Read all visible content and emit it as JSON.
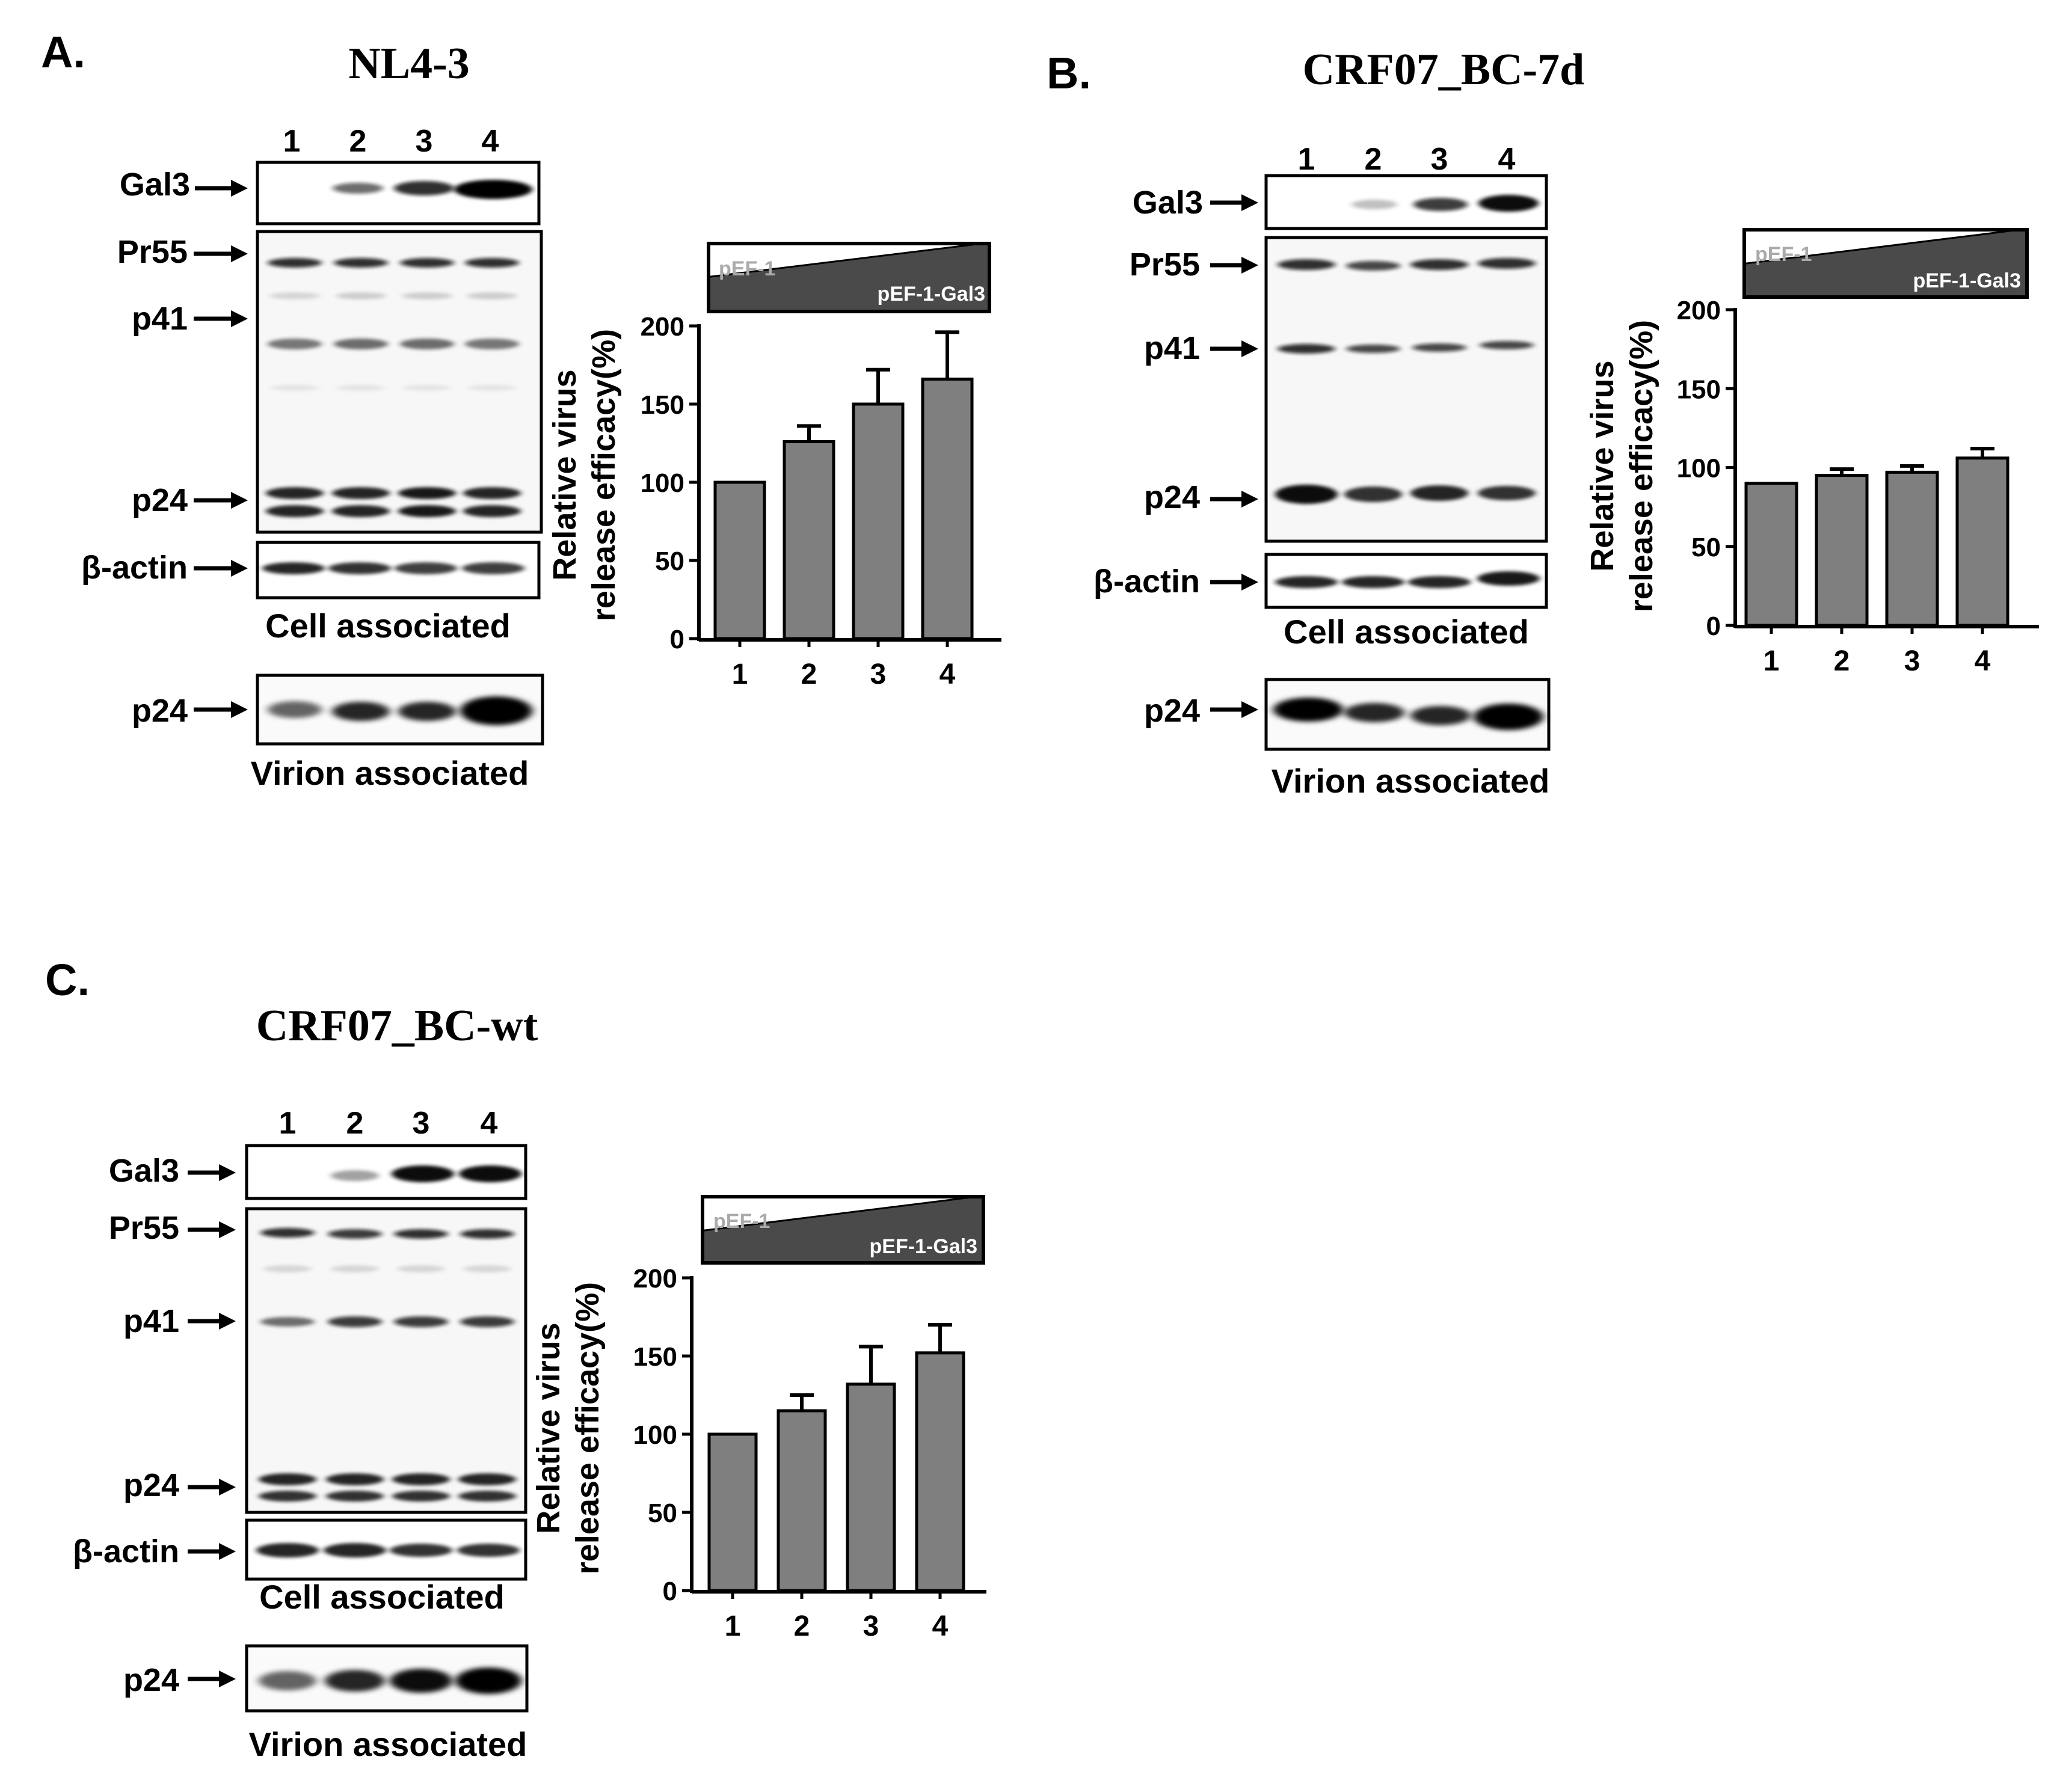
{
  "panels": [
    {
      "letter": "A.",
      "title": "NL4-3",
      "lanes": [
        "1",
        "2",
        "3",
        "4"
      ],
      "blots": [
        {
          "labels": [
            "Gal3"
          ],
          "intensity": [
            0.0,
            0.55,
            0.8,
            1.0
          ]
        },
        {
          "labels": [
            "Pr55",
            "p41",
            "p24"
          ],
          "intensity": [
            0.85,
            0.85,
            0.85,
            0.85
          ]
        },
        {
          "labels": [
            "β-actin"
          ],
          "intensity": [
            0.9,
            0.85,
            0.8,
            0.8
          ]
        },
        {
          "labels": [
            "p24"
          ],
          "intensity": [
            0.7,
            0.85,
            0.85,
            1.0
          ]
        }
      ],
      "cell_caption": "Cell associated",
      "virion_caption": "Virion associated",
      "wedge_top": "pEF-1",
      "wedge_bottom": "pEF-1-Gal3"
    },
    {
      "letter": "B.",
      "title": "CRF07_BC-7d",
      "lanes": [
        "1",
        "2",
        "3",
        "4"
      ],
      "blots": [
        {
          "labels": [
            "Gal3"
          ],
          "intensity": [
            0.0,
            0.3,
            0.75,
            0.95
          ]
        },
        {
          "labels": [
            "Pr55",
            "p41",
            "p24"
          ],
          "intensity": [
            0.9,
            0.8,
            0.85,
            0.8
          ]
        },
        {
          "labels": [
            "β-actin"
          ],
          "intensity": [
            0.9,
            0.9,
            0.9,
            0.9
          ]
        },
        {
          "labels": [
            "p24"
          ],
          "intensity": [
            1.0,
            0.85,
            0.85,
            1.0
          ]
        }
      ],
      "cell_caption": "Cell associated",
      "virion_caption": "Virion associated",
      "wedge_top": "pEF-1",
      "wedge_bottom": "pEF-1-Gal3"
    },
    {
      "letter": "C.",
      "title": "CRF07_BC-wt",
      "lanes": [
        "1",
        "2",
        "3",
        "4"
      ],
      "blots": [
        {
          "labels": [
            "Gal3"
          ],
          "intensity": [
            0.0,
            0.35,
            0.95,
            0.95
          ]
        },
        {
          "labels": [
            "Pr55",
            "p41",
            "p24"
          ],
          "intensity": [
            0.85,
            0.85,
            0.85,
            0.85
          ]
        },
        {
          "labels": [
            "β-actin"
          ],
          "intensity": [
            0.9,
            0.85,
            0.85,
            0.85
          ]
        },
        {
          "labels": [
            "p24"
          ],
          "intensity": [
            0.7,
            0.85,
            0.95,
            1.0
          ]
        }
      ],
      "cell_caption": "Cell associated",
      "virion_caption": "Virion associated",
      "wedge_top": "pEF-1",
      "wedge_bottom": "pEF-1-Gal3"
    }
  ],
  "chart_data": [
    {
      "type": "bar",
      "panel": "A.",
      "categories": [
        "1",
        "2",
        "3",
        "4"
      ],
      "values": [
        100,
        126,
        150,
        166
      ],
      "errors": [
        0,
        10,
        22,
        30
      ],
      "ylabel": "Relative virus release efficacy(%)",
      "yticks": [
        0,
        50,
        100,
        150,
        200
      ],
      "ylim": [
        0,
        200
      ],
      "bar_color": "#7f7f7f"
    },
    {
      "type": "bar",
      "panel": "B.",
      "categories": [
        "1",
        "2",
        "3",
        "4"
      ],
      "values": [
        90,
        95,
        97,
        106
      ],
      "errors": [
        0,
        4,
        4,
        6
      ],
      "ylabel": "Relative virus release efficacy(%)",
      "yticks": [
        0,
        50,
        100,
        150,
        200
      ],
      "ylim": [
        0,
        200
      ],
      "bar_color": "#7f7f7f"
    },
    {
      "type": "bar",
      "panel": "C.",
      "categories": [
        "1",
        "2",
        "3",
        "4"
      ],
      "values": [
        100,
        115,
        132,
        152
      ],
      "errors": [
        0,
        10,
        24,
        18
      ],
      "ylabel": "Relative virus release efficacy(%)",
      "yticks": [
        0,
        50,
        100,
        150,
        200
      ],
      "ylim": [
        0,
        200
      ],
      "bar_color": "#7f7f7f"
    }
  ]
}
